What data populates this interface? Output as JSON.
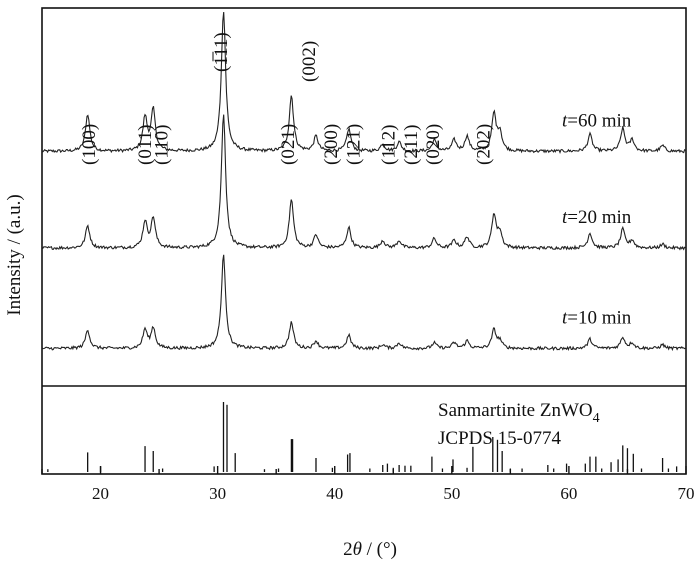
{
  "chart_data": {
    "type": "line",
    "xlabel": "2θ / (°)",
    "ylabel": "Intensity / (a.u.)",
    "xlim": [
      15,
      70
    ],
    "xticks": [
      20,
      30,
      40,
      50,
      60,
      70
    ],
    "grid": false,
    "series": [
      {
        "name": "t=60 min",
        "label_prefix": "t",
        "label_suffix": "=60 min",
        "baseline": 0.62,
        "peaks": [
          [
            18.9,
            0.1
          ],
          [
            23.8,
            0.09
          ],
          [
            24.5,
            0.11
          ],
          [
            30.5,
            0.38
          ],
          [
            36.3,
            0.15
          ],
          [
            38.4,
            0.04
          ],
          [
            41.2,
            0.06
          ],
          [
            44.1,
            0.02
          ],
          [
            45.5,
            0.025
          ],
          [
            48.5,
            0.03
          ],
          [
            50.2,
            0.03
          ],
          [
            51.3,
            0.04
          ],
          [
            53.6,
            0.1
          ],
          [
            54.1,
            0.05
          ],
          [
            61.8,
            0.045
          ],
          [
            64.6,
            0.06
          ],
          [
            65.4,
            0.03
          ],
          [
            68.0,
            0.015
          ]
        ]
      },
      {
        "name": "t=20 min",
        "label_prefix": "t",
        "label_suffix": "=20 min",
        "baseline": 0.36,
        "peaks": [
          [
            18.9,
            0.06
          ],
          [
            23.8,
            0.07
          ],
          [
            24.5,
            0.08
          ],
          [
            30.5,
            0.36
          ],
          [
            36.3,
            0.13
          ],
          [
            38.4,
            0.035
          ],
          [
            41.2,
            0.055
          ],
          [
            44.1,
            0.02
          ],
          [
            45.5,
            0.02
          ],
          [
            48.5,
            0.025
          ],
          [
            50.2,
            0.02
          ],
          [
            51.3,
            0.03
          ],
          [
            53.6,
            0.09
          ],
          [
            54.1,
            0.04
          ],
          [
            61.8,
            0.04
          ],
          [
            64.6,
            0.05
          ],
          [
            65.4,
            0.02
          ],
          [
            68.0,
            0.01
          ]
        ]
      },
      {
        "name": "t=10 min",
        "label_prefix": "t",
        "label_suffix": "=10 min",
        "baseline": 0.09,
        "peaks": [
          [
            18.9,
            0.05
          ],
          [
            23.8,
            0.05
          ],
          [
            24.5,
            0.055
          ],
          [
            30.5,
            0.25
          ],
          [
            36.3,
            0.07
          ],
          [
            38.4,
            0.02
          ],
          [
            41.2,
            0.035
          ],
          [
            44.1,
            0.01
          ],
          [
            45.5,
            0.015
          ],
          [
            48.5,
            0.015
          ],
          [
            50.2,
            0.015
          ],
          [
            51.3,
            0.02
          ],
          [
            53.6,
            0.05
          ],
          [
            54.1,
            0.02
          ],
          [
            61.8,
            0.025
          ],
          [
            64.6,
            0.03
          ],
          [
            65.4,
            0.015
          ],
          [
            68.0,
            0.01
          ]
        ]
      }
    ],
    "peak_labels": [
      {
        "text": "(100)",
        "x": 19.0
      },
      {
        "text": "(011)",
        "x": 23.8
      },
      {
        "text": "(110)",
        "x": 25.2
      },
      {
        "text": "(1̅11)",
        "x": 30.3
      },
      {
        "text": "(021)",
        "x": 36.0
      },
      {
        "text": "(002)",
        "x": 37.8
      },
      {
        "text": "(200)",
        "x": 39.7
      },
      {
        "text": "(121)",
        "x": 41.6
      },
      {
        "text": "(112)",
        "x": 44.6
      },
      {
        "text": "(211)",
        "x": 46.5
      },
      {
        "text": "(020)",
        "x": 48.4
      },
      {
        "text": "(202)",
        "x": 52.7
      }
    ],
    "reference": {
      "name": "Sanmartinite ZnWO4",
      "name_prefix": "Sanmartinite  ZnWO",
      "name_subscript": "4",
      "card": "JCPDS 15-0774",
      "lines": [
        [
          15.5,
          0.04
        ],
        [
          18.9,
          0.28
        ],
        [
          20.0,
          0.08
        ],
        [
          23.8,
          0.37
        ],
        [
          24.5,
          0.3
        ],
        [
          25.3,
          0.05
        ],
        [
          29.7,
          0.08
        ],
        [
          30.5,
          1.0
        ],
        [
          30.8,
          0.96
        ],
        [
          31.5,
          0.27
        ],
        [
          34.0,
          0.04
        ],
        [
          35.2,
          0.05
        ],
        [
          36.3,
          0.47
        ],
        [
          36.4,
          0.47
        ],
        [
          38.4,
          0.2
        ],
        [
          39.8,
          0.06
        ],
        [
          41.1,
          0.25
        ],
        [
          41.3,
          0.27
        ],
        [
          43.0,
          0.05
        ],
        [
          44.1,
          0.1
        ],
        [
          44.5,
          0.12
        ],
        [
          45.0,
          0.06
        ],
        [
          45.5,
          0.1
        ],
        [
          46.0,
          0.09
        ],
        [
          46.5,
          0.09
        ],
        [
          48.3,
          0.22
        ],
        [
          49.2,
          0.05
        ],
        [
          50.1,
          0.18
        ],
        [
          51.3,
          0.06
        ],
        [
          51.8,
          0.36
        ],
        [
          53.5,
          0.5
        ],
        [
          53.9,
          0.46
        ],
        [
          54.3,
          0.3
        ],
        [
          55.0,
          0.05
        ],
        [
          56.0,
          0.05
        ],
        [
          58.2,
          0.1
        ],
        [
          58.7,
          0.05
        ],
        [
          59.8,
          0.12
        ],
        [
          61.4,
          0.12
        ],
        [
          61.8,
          0.22
        ],
        [
          62.3,
          0.22
        ],
        [
          62.8,
          0.05
        ],
        [
          63.6,
          0.14
        ],
        [
          64.2,
          0.18
        ],
        [
          64.6,
          0.38
        ],
        [
          65.0,
          0.34
        ],
        [
          65.5,
          0.26
        ],
        [
          66.2,
          0.05
        ],
        [
          68.0,
          0.2
        ],
        [
          68.5,
          0.05
        ],
        [
          69.2,
          0.08
        ]
      ]
    }
  }
}
